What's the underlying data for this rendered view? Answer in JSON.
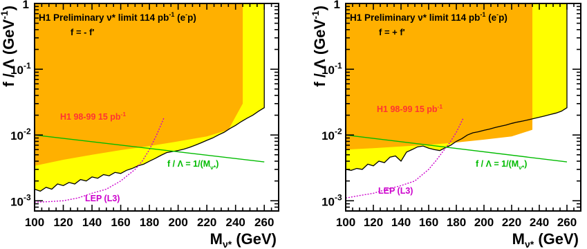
{
  "chart_data": [
    {
      "type": "area",
      "title": "H1 Preliminary ν* limit 114 pb⁻¹ (e⁻p)",
      "title_parts": {
        "base": "H1 Preliminary ν* limit 114 pb",
        "sup1": "-1",
        "paren_open": " (e",
        "sup2": "-",
        "paren_close": "p)"
      },
      "coupling_label": "f = - f'",
      "xlabel": "M_ν* (GeV)",
      "xlabel_parts": {
        "m": "M",
        "sub": "ν*",
        "unit": " (GeV)"
      },
      "ylabel": "f / Λ (GeV⁻¹)",
      "ylabel_parts": {
        "base": "f / Λ (GeV",
        "sup": "-1",
        "close": ")"
      },
      "xlim": [
        100,
        270
      ],
      "ylim": [
        0.0007,
        1
      ],
      "yscale": "log",
      "x_ticks": [
        100,
        120,
        140,
        160,
        180,
        200,
        220,
        240,
        260
      ],
      "y_ticks": [
        {
          "mantissa": "10",
          "exp": "-3",
          "value": 0.001
        },
        {
          "mantissa": "10",
          "exp": "-2",
          "value": 0.01
        },
        {
          "mantissa": "10",
          "exp": "-1",
          "value": 0.1
        },
        {
          "mantissa": "1",
          "exp": "",
          "value": 1
        }
      ],
      "series": [
        {
          "name": "H1 114 pb⁻¹ limit",
          "color": "#ffff00",
          "x": [
            100,
            104,
            108,
            112,
            116,
            120,
            124,
            128,
            132,
            136,
            140,
            144,
            148,
            152,
            156,
            160,
            164,
            168,
            172,
            176,
            180,
            184,
            188,
            192,
            196,
            200,
            204,
            208,
            212,
            216,
            220,
            224,
            228,
            232,
            236,
            240,
            244,
            248,
            252,
            256,
            260
          ],
          "y": [
            0.0015,
            0.0014,
            0.0016,
            0.0015,
            0.0018,
            0.0017,
            0.0019,
            0.0018,
            0.0021,
            0.002,
            0.0023,
            0.0022,
            0.0025,
            0.0024,
            0.0027,
            0.0026,
            0.0029,
            0.0031,
            0.0034,
            0.0036,
            0.004,
            0.0044,
            0.0049,
            0.0054,
            0.0056,
            0.0058,
            0.0061,
            0.0065,
            0.007,
            0.0076,
            0.0083,
            0.009,
            0.01,
            0.011,
            0.0125,
            0.014,
            0.016,
            0.018,
            0.02,
            0.023,
            0.026
          ]
        },
        {
          "name": "H1 98-99 15 pb⁻¹",
          "label_parts": {
            "base": "H1 98-99 15 pb",
            "sup": "-1"
          },
          "color": "#ffb000",
          "x": [
            100,
            120,
            140,
            160,
            180,
            200,
            220,
            235,
            245,
            245
          ],
          "y": [
            0.0034,
            0.0042,
            0.005,
            0.0059,
            0.0068,
            0.008,
            0.0095,
            0.012,
            0.03,
            1.0
          ]
        },
        {
          "name": "LEP (L3)",
          "color": "#cc00cc",
          "style": "dotted",
          "x": [
            100,
            110,
            120,
            130,
            140,
            150,
            160,
            170,
            175,
            180,
            185,
            190
          ],
          "y": [
            0.00095,
            0.00097,
            0.001,
            0.0011,
            0.0013,
            0.0015,
            0.002,
            0.003,
            0.004,
            0.006,
            0.01,
            0.018
          ]
        },
        {
          "name": "f / Λ = 1/(M_ν*)",
          "label_parts": {
            "base": "f / Λ = 1/(M",
            "sub": "ν*",
            "close": ")"
          },
          "color": "#00bb00",
          "x": [
            100,
            260
          ],
          "y": [
            0.01,
            0.0039
          ]
        }
      ]
    },
    {
      "type": "area",
      "title": "H1 Preliminary ν* limit 114 pb⁻¹ (e⁻p)",
      "title_parts": {
        "base": "H1 Preliminary ν* limit 114 pb",
        "sup1": "-1",
        "paren_open": " (e",
        "sup2": "-",
        "paren_close": "p)"
      },
      "coupling_label": "f = + f'",
      "xlabel": "M_ν* (GeV)",
      "xlabel_parts": {
        "m": "M",
        "sub": "ν*",
        "unit": " (GeV)"
      },
      "ylabel": "f / Λ (GeV⁻¹)",
      "ylabel_parts": {
        "base": "f / Λ (GeV",
        "sup": "-1",
        "close": ")"
      },
      "xlim": [
        100,
        270
      ],
      "ylim": [
        0.0007,
        1
      ],
      "yscale": "log",
      "x_ticks": [
        100,
        120,
        140,
        160,
        180,
        200,
        220,
        240,
        260
      ],
      "y_ticks": [
        {
          "mantissa": "10",
          "exp": "-3",
          "value": 0.001
        },
        {
          "mantissa": "10",
          "exp": "-2",
          "value": 0.01
        },
        {
          "mantissa": "10",
          "exp": "-1",
          "value": 0.1
        },
        {
          "mantissa": "1",
          "exp": "",
          "value": 1
        }
      ],
      "series": [
        {
          "name": "H1 114 pb⁻¹ limit",
          "color": "#ffff00",
          "x": [
            100,
            104,
            108,
            112,
            116,
            120,
            124,
            128,
            132,
            136,
            140,
            144,
            148,
            152,
            156,
            160,
            164,
            168,
            172,
            176,
            180,
            184,
            188,
            192,
            196,
            200,
            204,
            208,
            212,
            216,
            220,
            224,
            228,
            232,
            236,
            240,
            244,
            248,
            252,
            256,
            260
          ],
          "y": [
            0.003,
            0.0029,
            0.0031,
            0.003,
            0.0036,
            0.0034,
            0.004,
            0.0038,
            0.0046,
            0.0048,
            0.004,
            0.0055,
            0.006,
            0.0066,
            0.0068,
            0.0063,
            0.006,
            0.0058,
            0.0064,
            0.007,
            0.008,
            0.0088,
            0.01,
            0.0108,
            0.0112,
            0.0118,
            0.0123,
            0.013,
            0.0136,
            0.0142,
            0.015,
            0.0157,
            0.0163,
            0.017,
            0.0178,
            0.0186,
            0.0195,
            0.0205,
            0.0215,
            0.023,
            0.026
          ]
        },
        {
          "name": "H1 98-99 15 pb⁻¹",
          "label_parts": {
            "base": "H1 98-99 15 pb",
            "sup": "-1"
          },
          "color": "#ffb000",
          "x": [
            100,
            120,
            140,
            160,
            180,
            200,
            220,
            235,
            235
          ],
          "y": [
            0.006,
            0.0063,
            0.0067,
            0.0071,
            0.0077,
            0.0085,
            0.0095,
            0.012,
            1.0
          ]
        },
        {
          "name": "LEP (L3)",
          "color": "#cc00cc",
          "style": "dotted",
          "x": [
            100,
            110,
            120,
            130,
            140,
            150,
            160,
            165,
            170,
            175,
            180,
            185
          ],
          "y": [
            0.0011,
            0.0012,
            0.0013,
            0.0015,
            0.0017,
            0.002,
            0.003,
            0.004,
            0.0055,
            0.0075,
            0.011,
            0.018
          ]
        },
        {
          "name": "f / Λ = 1/(M_ν*)",
          "label_parts": {
            "base": "f / Λ = 1/(M",
            "sub": "ν*",
            "close": ")"
          },
          "color": "#00bb00",
          "x": [
            100,
            260
          ],
          "y": [
            0.01,
            0.0039
          ]
        }
      ]
    }
  ]
}
